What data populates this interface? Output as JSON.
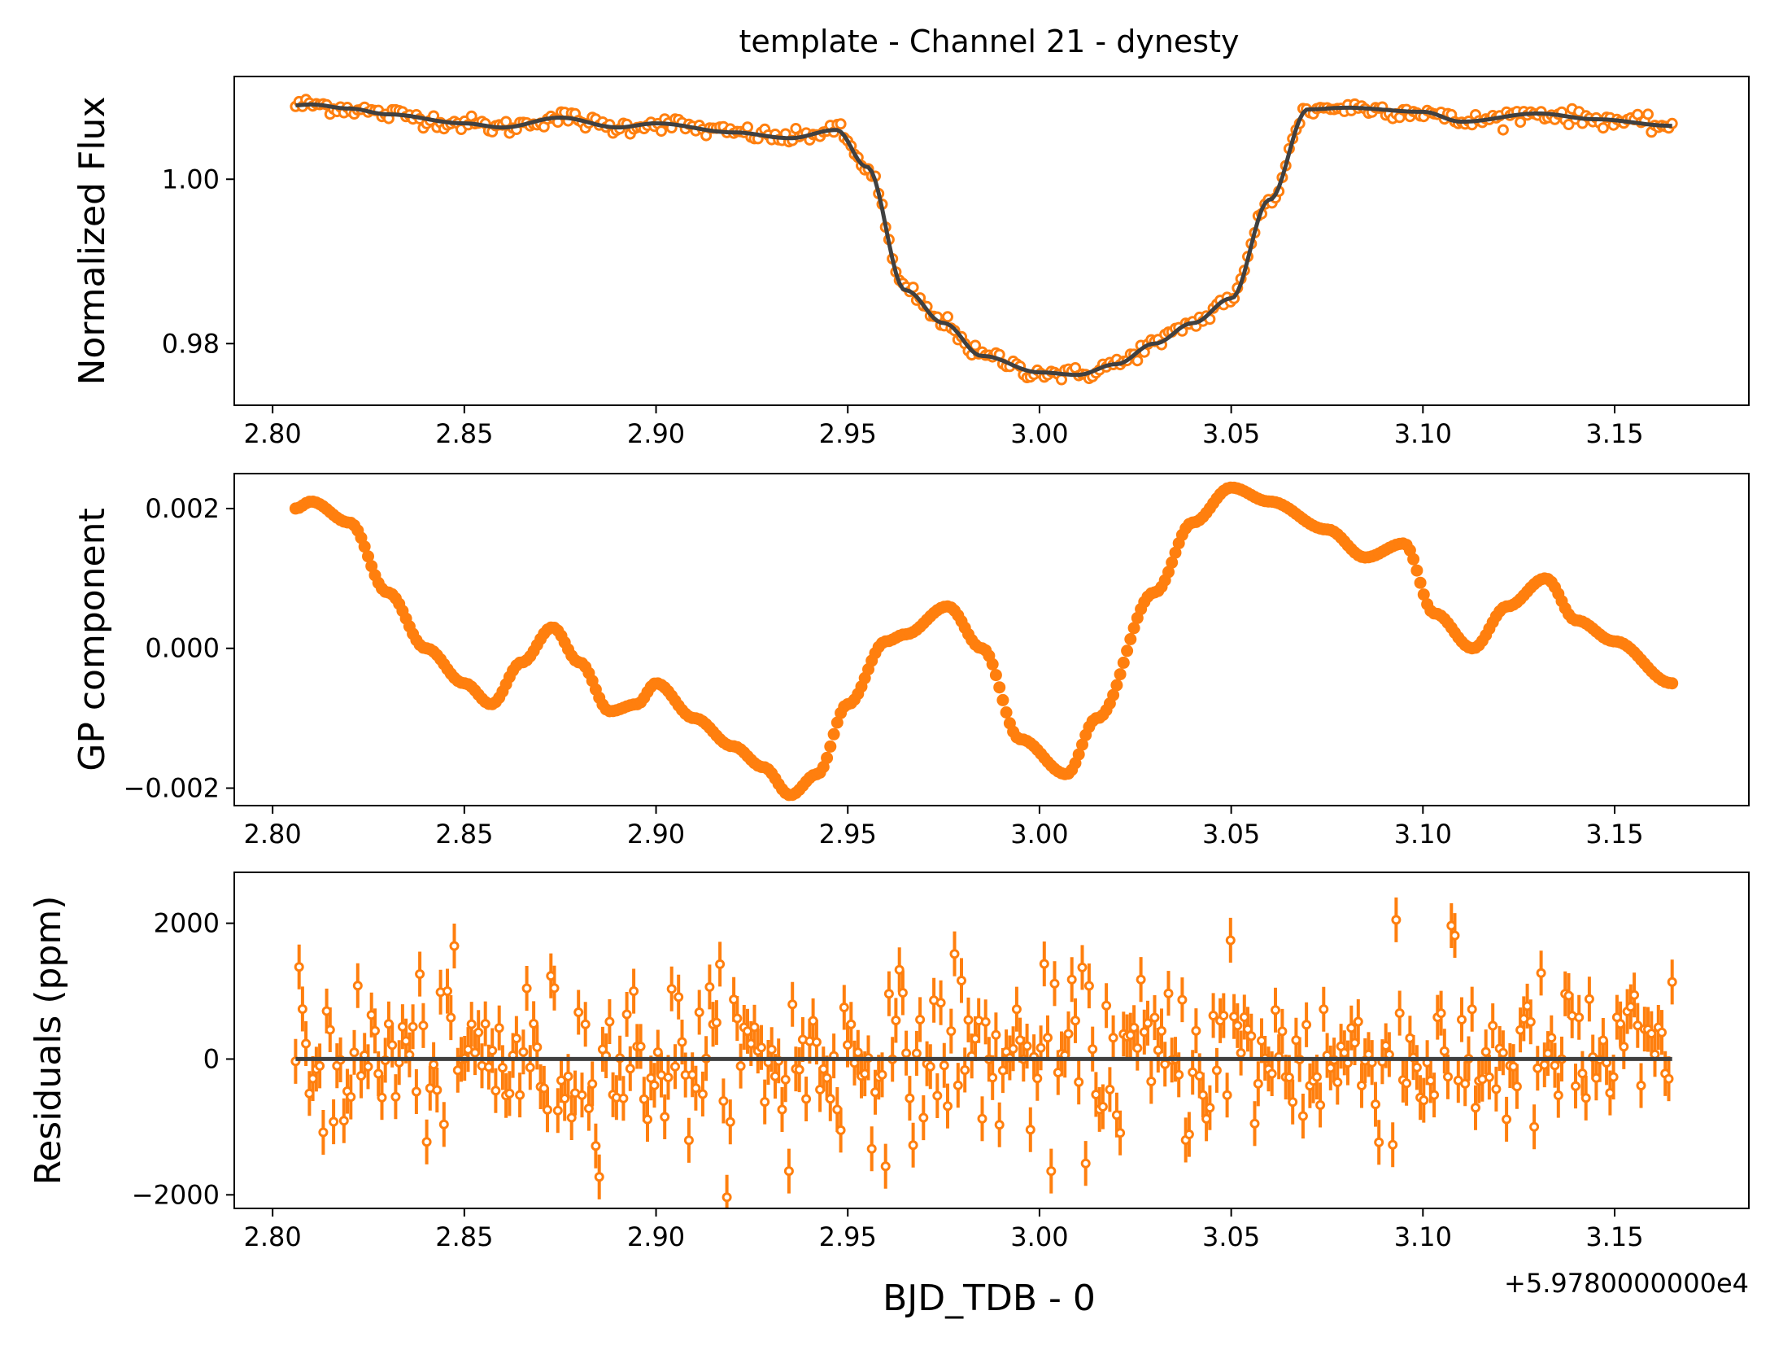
{
  "colors": {
    "data": "#ff7f0e",
    "model": "#404040",
    "axis": "#000000",
    "background": "#ffffff"
  },
  "chart_data": [
    {
      "type": "scatter",
      "title": "template - Channel 21 - dynesty",
      "ylabel": "Normalized Flux",
      "xlim": [
        2.79,
        3.185
      ],
      "ylim": [
        0.9725,
        1.0125
      ],
      "xticks": [
        2.8,
        2.85,
        2.9,
        2.95,
        3.0,
        3.05,
        3.1,
        3.15
      ],
      "xtick_labels": [
        "2.80",
        "2.85",
        "2.90",
        "2.95",
        "3.00",
        "3.05",
        "3.10",
        "3.15"
      ],
      "yticks": [
        0.98,
        1.0
      ],
      "ytick_labels": [
        "0.98",
        "1.00"
      ],
      "series": [
        {
          "role": "data",
          "marker": "open-circle",
          "x_range": [
            2.806,
            3.165
          ],
          "count": 400,
          "model_points": [
            [
              2.806,
              1.009
            ],
            [
              2.81,
              1.0091
            ],
            [
              2.82,
              1.0086
            ],
            [
              2.83,
              1.0079
            ],
            [
              2.85,
              1.0068
            ],
            [
              2.86,
              1.0063
            ],
            [
              2.875,
              1.0075
            ],
            [
              2.89,
              1.0063
            ],
            [
              2.9,
              1.0068
            ],
            [
              2.92,
              1.0057
            ],
            [
              2.935,
              1.005
            ],
            [
              2.947,
              1.006
            ],
            [
              2.955,
              1.0015
            ],
            [
              2.965,
              0.9865
            ],
            [
              2.975,
              0.9825
            ],
            [
              2.985,
              0.9785
            ],
            [
              3.0,
              0.9765
            ],
            [
              3.01,
              0.9762
            ],
            [
              3.02,
              0.9775
            ],
            [
              3.03,
              0.98
            ],
            [
              3.04,
              0.9825
            ],
            [
              3.05,
              0.9855
            ],
            [
              3.06,
              0.9975
            ],
            [
              3.07,
              1.0085
            ],
            [
              3.08,
              1.0087
            ],
            [
              3.1,
              1.0082
            ],
            [
              3.11,
              1.007
            ],
            [
              3.13,
              1.008
            ],
            [
              3.145,
              1.0073
            ],
            [
              3.165,
              1.0065
            ]
          ]
        },
        {
          "role": "model",
          "style": "line"
        }
      ]
    },
    {
      "type": "scatter",
      "ylabel": "GP component",
      "xlim": [
        2.79,
        3.185
      ],
      "ylim": [
        -0.00225,
        0.0025
      ],
      "xticks": [
        2.8,
        2.85,
        2.9,
        2.95,
        3.0,
        3.05,
        3.1,
        3.15
      ],
      "xtick_labels": [
        "2.80",
        "2.85",
        "2.90",
        "2.95",
        "3.00",
        "3.05",
        "3.10",
        "3.15"
      ],
      "yticks": [
        -0.002,
        0.0,
        0.002
      ],
      "ytick_labels": [
        "−0.002",
        "0.000",
        "0.002"
      ],
      "series": [
        {
          "role": "data",
          "marker": "filled-circle",
          "x_range": [
            2.806,
            3.165
          ],
          "count": 400,
          "model_points": [
            [
              2.806,
              0.002
            ],
            [
              2.81,
              0.0021
            ],
            [
              2.82,
              0.0018
            ],
            [
              2.83,
              0.0008
            ],
            [
              2.84,
              0.0
            ],
            [
              2.85,
              -0.0005
            ],
            [
              2.857,
              -0.0008
            ],
            [
              2.865,
              -0.0002
            ],
            [
              2.873,
              0.0003
            ],
            [
              2.88,
              -0.0002
            ],
            [
              2.888,
              -0.0009
            ],
            [
              2.895,
              -0.0008
            ],
            [
              2.9,
              -0.0005
            ],
            [
              2.91,
              -0.001
            ],
            [
              2.92,
              -0.0014
            ],
            [
              2.928,
              -0.0017
            ],
            [
              2.935,
              -0.0021
            ],
            [
              2.942,
              -0.0018
            ],
            [
              2.95,
              -0.0008
            ],
            [
              2.96,
              0.0001
            ],
            [
              2.965,
              0.0002
            ],
            [
              2.976,
              0.0006
            ],
            [
              2.985,
              0.0
            ],
            [
              2.995,
              -0.0013
            ],
            [
              3.007,
              -0.0018
            ],
            [
              3.015,
              -0.001
            ],
            [
              3.03,
              0.0008
            ],
            [
              3.04,
              0.0018
            ],
            [
              3.05,
              0.0023
            ],
            [
              3.06,
              0.0021
            ],
            [
              3.075,
              0.0017
            ],
            [
              3.085,
              0.0013
            ],
            [
              3.095,
              0.0015
            ],
            [
              3.103,
              0.0005
            ],
            [
              3.113,
              0.0
            ],
            [
              3.122,
              0.0006
            ],
            [
              3.132,
              0.001
            ],
            [
              3.14,
              0.0004
            ],
            [
              3.15,
              0.0001
            ],
            [
              3.165,
              -0.0005
            ]
          ]
        }
      ]
    },
    {
      "type": "scatter",
      "ylabel": "Residuals (ppm)",
      "xlabel": "BJD_TDB - 0",
      "x_offset_label": "+5.9780000000e4",
      "xlim": [
        2.79,
        3.185
      ],
      "ylim": [
        -2200,
        2750
      ],
      "xticks": [
        2.8,
        2.85,
        2.9,
        2.95,
        3.0,
        3.05,
        3.1,
        3.15
      ],
      "xtick_labels": [
        "2.80",
        "2.85",
        "2.90",
        "2.95",
        "3.00",
        "3.05",
        "3.10",
        "3.15"
      ],
      "yticks": [
        -2000,
        0,
        2000
      ],
      "ytick_labels": [
        "−2000",
        "0",
        "2000"
      ],
      "series": [
        {
          "role": "data",
          "marker": "open-circle-errorbar",
          "x_range": [
            2.806,
            3.165
          ],
          "count": 400,
          "y_scatter_ppm": 600,
          "errorbar_ppm": 330,
          "notable_points": [
            [
              2.935,
              -1650
            ],
            [
              3.003,
              -1650
            ],
            [
              3.05,
              1750
            ],
            [
              3.093,
              2050
            ],
            [
              3.108,
              1820
            ],
            [
              2.978,
              1550
            ]
          ]
        },
        {
          "role": "model",
          "style": "line",
          "value": 0
        }
      ]
    }
  ]
}
